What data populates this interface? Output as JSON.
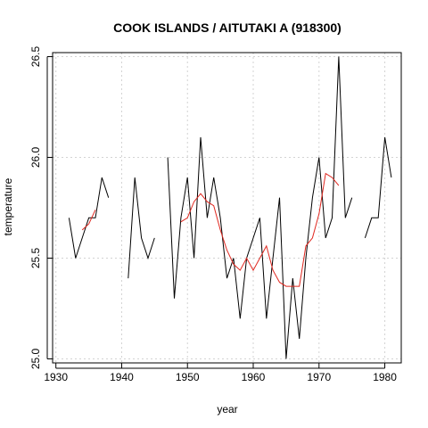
{
  "chart_data": {
    "type": "line",
    "title": "COOK ISLANDS / AITUTAKI A (918300)",
    "xlabel": "year",
    "ylabel": "temperature",
    "xlim": [
      1929.5,
      1982.5
    ],
    "ylim": [
      24.98,
      26.52
    ],
    "xticks": [
      1930,
      1940,
      1950,
      1960,
      1970,
      1980
    ],
    "yticks": [
      25.0,
      25.5,
      26.0,
      26.5
    ],
    "grid": true,
    "colors": {
      "raw": "#000000",
      "smooth": "#e0271f",
      "grid": "#d3d3d3"
    },
    "series": [
      {
        "key": "raw",
        "color": "#000000",
        "x": [
          1932,
          1933,
          1934,
          1935,
          1936,
          1937,
          1938,
          1939,
          1940,
          1941,
          1942,
          1943,
          1944,
          1945,
          1946,
          1947,
          1948,
          1949,
          1950,
          1951,
          1952,
          1953,
          1954,
          1955,
          1956,
          1957,
          1958,
          1959,
          1960,
          1961,
          1962,
          1963,
          1964,
          1965,
          1966,
          1967,
          1968,
          1969,
          1970,
          1971,
          1972,
          1973,
          1974,
          1975,
          1976,
          1977,
          1978,
          1979,
          1980,
          1981
        ],
        "y": [
          25.7,
          25.5,
          25.6,
          25.7,
          25.7,
          25.9,
          25.8,
          null,
          null,
          25.4,
          25.9,
          25.6,
          25.5,
          25.6,
          null,
          26.0,
          25.3,
          25.7,
          25.9,
          25.5,
          26.1,
          25.7,
          25.9,
          25.7,
          25.4,
          25.5,
          25.2,
          25.5,
          25.6,
          25.7,
          25.2,
          25.5,
          25.8,
          25.0,
          25.4,
          25.1,
          25.5,
          25.8,
          26.0,
          25.6,
          25.7,
          26.5,
          25.7,
          25.8,
          null,
          25.6,
          25.7,
          25.7,
          26.1,
          25.9
        ]
      },
      {
        "key": "smooth",
        "color": "#e0271f",
        "x": [
          1934,
          1935,
          1936,
          1937,
          1938,
          1939,
          1940,
          1941,
          1942,
          1943,
          1944,
          1945,
          1946,
          1947,
          1948,
          1949,
          1950,
          1951,
          1952,
          1953,
          1954,
          1955,
          1956,
          1957,
          1958,
          1959,
          1960,
          1961,
          1962,
          1963,
          1964,
          1965,
          1966,
          1967,
          1968,
          1969,
          1970,
          1971,
          1972,
          1973
        ],
        "y": [
          25.64,
          25.67,
          25.74,
          null,
          null,
          null,
          null,
          null,
          null,
          null,
          null,
          null,
          null,
          null,
          null,
          25.68,
          25.7,
          25.78,
          25.82,
          25.78,
          25.76,
          25.64,
          25.54,
          25.47,
          25.44,
          25.5,
          25.44,
          25.5,
          25.56,
          25.44,
          25.38,
          25.36,
          25.36,
          25.36,
          25.56,
          25.6,
          25.72,
          25.92,
          25.9,
          25.86
        ]
      }
    ]
  }
}
